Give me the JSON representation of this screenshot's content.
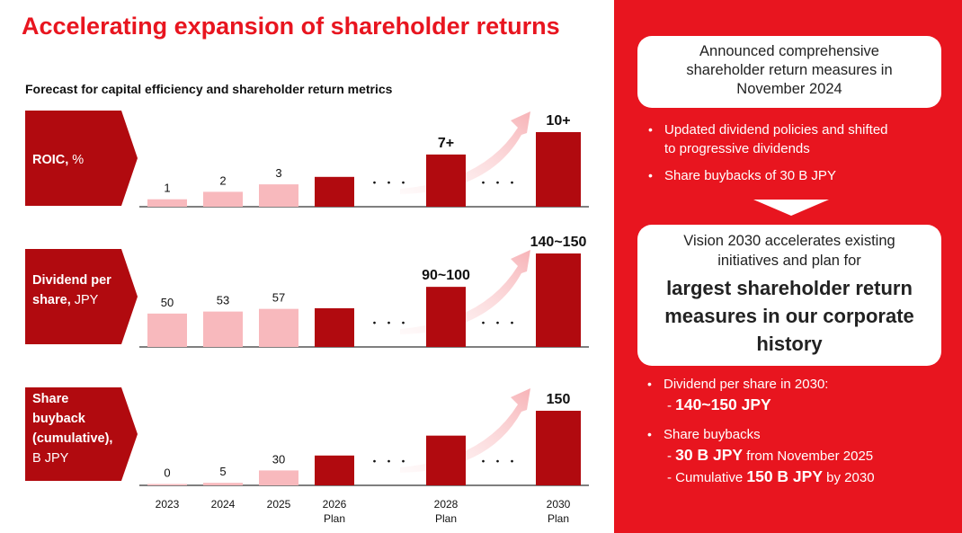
{
  "title": "Accelerating expansion of shareholder returns",
  "subtitle": "Forecast for capital efficiency and shareholder return metrics",
  "colors": {
    "accent_red": "#e8151f",
    "dark_red": "#b10a0f",
    "pink": "#f8b9bd"
  },
  "chart_data": {
    "type": "bar",
    "categories": [
      "2023",
      "2024",
      "2025",
      "2026\nPlan",
      "2028\nPlan",
      "2030\nPlan"
    ],
    "x_tick_labels": [
      {
        "line1": "2023",
        "line2": ""
      },
      {
        "line1": "2024",
        "line2": ""
      },
      {
        "line1": "2025",
        "line2": ""
      },
      {
        "line1": "2026",
        "line2": "Plan"
      },
      {
        "line1": "2028",
        "line2": "Plan"
      },
      {
        "line1": "2030",
        "line2": "Plan"
      }
    ],
    "ellipsis": "・・・",
    "panels": [
      {
        "label_bold": "ROIC,",
        "label_normal": " %",
        "values": [
          1,
          2,
          3,
          4,
          7,
          10
        ],
        "data_labels": [
          "1",
          "2",
          "3",
          "",
          "7+",
          "10+"
        ],
        "ylim": [
          0,
          10
        ]
      },
      {
        "label_bold": "Dividend per share,",
        "label_normal": " JPY",
        "values": [
          50,
          53,
          57,
          58,
          90,
          140
        ],
        "data_labels": [
          "50",
          "53",
          "57",
          "",
          "90~100",
          "140~150"
        ],
        "ylim": [
          0,
          140
        ]
      },
      {
        "label_bold": "Share buyback (cumulative),",
        "label_normal": " B JPY",
        "values": [
          0,
          5,
          30,
          60,
          100,
          150
        ],
        "data_labels": [
          "0",
          "5",
          "30",
          "",
          "",
          "150"
        ],
        "ylim": [
          0,
          150
        ]
      }
    ]
  },
  "right_panel": {
    "box1_lines": [
      "Announced comprehensive",
      "shareholder return measures in",
      "November 2024"
    ],
    "bullets1": [
      "Updated dividend policies and shifted",
      "to progressive dividends",
      "Share buybacks of 30 B JPY"
    ],
    "box2_lines": [
      "Vision 2030 accelerates existing",
      "initiatives and plan for"
    ],
    "box2_bold": [
      "largest shareholder return",
      "measures in our corporate",
      "history"
    ],
    "bullets2": {
      "b1_text": "Dividend per share in 2030:",
      "b1_dash": "- ",
      "b1_value": "140~150 JPY",
      "b2_text": "Share buybacks",
      "b2_line1_dash": "- ",
      "b2_line1_value": "30 B JPY",
      "b2_line1_suffix": " from November 2025",
      "b2_line2_prefix": "- Cumulative ",
      "b2_line2_value": "150 B JPY",
      "b2_line2_suffix": " by 2030"
    }
  }
}
